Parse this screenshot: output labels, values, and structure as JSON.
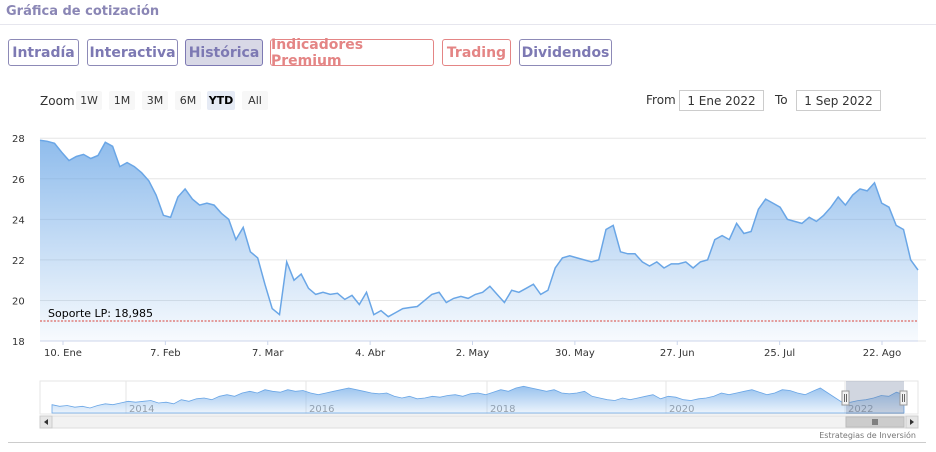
{
  "header": {
    "title": "Gráfica de cotización"
  },
  "tabs": [
    {
      "label": "Intradía",
      "style": "purple"
    },
    {
      "label": "Interactiva",
      "style": "purple"
    },
    {
      "label": "Histórica",
      "style": "active"
    },
    {
      "label": "Indicadores Premium",
      "style": "red"
    },
    {
      "label": "Trading",
      "style": "red"
    },
    {
      "label": "Dividendos",
      "style": "purple"
    }
  ],
  "range_selector": {
    "zoom_label": "Zoom",
    "buttons": [
      "1W",
      "1M",
      "3M",
      "6M",
      "YTD",
      "All"
    ],
    "selected": "YTD",
    "from_label": "From",
    "from_value": "1 Ene 2022",
    "to_label": "To",
    "to_value": "1 Sep 2022"
  },
  "chart_data": {
    "type": "area",
    "x_tick_labels": [
      "10. Ene",
      "7. Feb",
      "7. Mar",
      "4. Abr",
      "2. May",
      "30. May",
      "27. Jun",
      "25. Jul",
      "22. Ago"
    ],
    "y_ticks": [
      18,
      20,
      22,
      24,
      26,
      28
    ],
    "ylim": [
      18,
      28.8
    ],
    "grid": true,
    "series": [
      {
        "x": [
          0,
          2,
          4,
          6,
          8,
          10,
          12,
          14,
          16,
          18,
          20,
          22,
          24,
          26,
          28,
          30,
          32,
          34,
          36,
          38,
          40,
          42,
          44,
          46,
          48,
          50,
          52,
          54,
          56,
          58,
          60,
          62,
          64,
          66,
          68,
          70,
          72,
          74,
          76,
          78,
          80,
          82,
          84,
          86,
          88,
          90,
          92,
          94,
          96,
          98,
          100,
          102,
          104,
          106,
          108,
          110,
          112,
          114,
          116,
          118,
          120,
          122,
          124,
          126,
          128,
          130,
          132,
          134,
          136,
          138,
          140,
          142,
          144,
          146,
          148,
          150,
          152,
          154,
          156,
          158,
          160,
          162,
          164,
          166,
          168,
          170,
          172,
          174,
          176,
          178,
          180,
          182,
          184,
          186,
          188,
          190,
          192,
          194,
          196,
          198,
          200,
          202,
          204,
          206,
          208,
          210,
          212,
          214,
          216,
          218,
          220,
          222,
          224,
          226,
          228,
          230,
          232,
          234,
          236,
          238,
          240,
          242
        ],
        "values": [
          27.9,
          27.85,
          27.75,
          27.3,
          26.9,
          27.1,
          27.2,
          27.0,
          27.15,
          27.8,
          27.6,
          26.6,
          26.8,
          26.6,
          26.3,
          25.9,
          25.2,
          24.2,
          24.1,
          25.1,
          25.5,
          25.0,
          24.7,
          24.8,
          24.7,
          24.3,
          24.0,
          23.0,
          23.6,
          22.4,
          22.1,
          20.8,
          19.6,
          19.3,
          21.9,
          21.0,
          21.3,
          20.6,
          20.3,
          20.4,
          20.3,
          20.35,
          20.05,
          20.25,
          19.8,
          20.4,
          19.3,
          19.5,
          19.2,
          19.4,
          19.6,
          19.65,
          19.7,
          20.0,
          20.3,
          20.4,
          19.9,
          20.1,
          20.2,
          20.1,
          20.3,
          20.4,
          20.7,
          20.3,
          19.9,
          20.5,
          20.4,
          20.6,
          20.8,
          20.3,
          20.5,
          21.6,
          22.1,
          22.2,
          22.1,
          22.0,
          21.9,
          22.0,
          23.5,
          23.7,
          22.4,
          22.3,
          22.3,
          21.9,
          21.7,
          21.9,
          21.6,
          21.8,
          21.8,
          21.9,
          21.6,
          21.9,
          22.0,
          23.0,
          23.2,
          23.0,
          23.8,
          23.3,
          23.4,
          24.5,
          25.0,
          24.8,
          24.6,
          24.0,
          23.9,
          23.8,
          24.1,
          23.9,
          24.2,
          24.6,
          25.1,
          24.7,
          25.2,
          25.5,
          25.4,
          25.8,
          24.8,
          24.6,
          23.7,
          23.5,
          22.0,
          21.5
        ]
      }
    ],
    "support_line": {
      "label": "Soporte LP: 18,985",
      "value": 18.985
    },
    "navigator": {
      "year_labels": [
        "2014",
        "2016",
        "2018",
        "2020",
        "2022"
      ],
      "values": [
        17,
        16,
        16.5,
        15.5,
        16,
        15,
        16.5,
        17.5,
        17,
        18,
        19,
        18.5,
        19,
        19.5,
        18,
        18.5,
        17.5,
        20,
        19,
        20.5,
        21,
        20,
        22,
        23,
        22,
        24,
        25,
        24,
        26,
        25,
        24.5,
        26,
        25,
        25.5,
        24,
        23,
        24,
        25,
        26,
        27,
        26,
        25,
        24,
        23.5,
        24,
        22,
        21,
        22,
        20.5,
        21,
        22,
        21.5,
        22.5,
        23,
        22,
        23.5,
        24,
        23,
        24.5,
        26,
        25,
        27,
        28,
        27,
        26,
        25,
        26,
        24,
        23.5,
        24,
        25,
        22,
        21,
        20,
        19.5,
        21,
        20,
        21,
        22,
        23,
        20.5,
        22,
        21.5,
        20,
        19.5,
        20.5,
        21,
        22,
        24,
        23,
        24,
        25,
        26,
        24.5,
        23,
        24,
        26,
        25.5,
        24,
        23,
        25,
        27,
        24,
        21,
        18,
        18.5,
        19.5,
        20,
        21,
        22.5,
        22,
        24.5,
        23
      ]
    },
    "credits": "Estrategias de Inversión"
  }
}
